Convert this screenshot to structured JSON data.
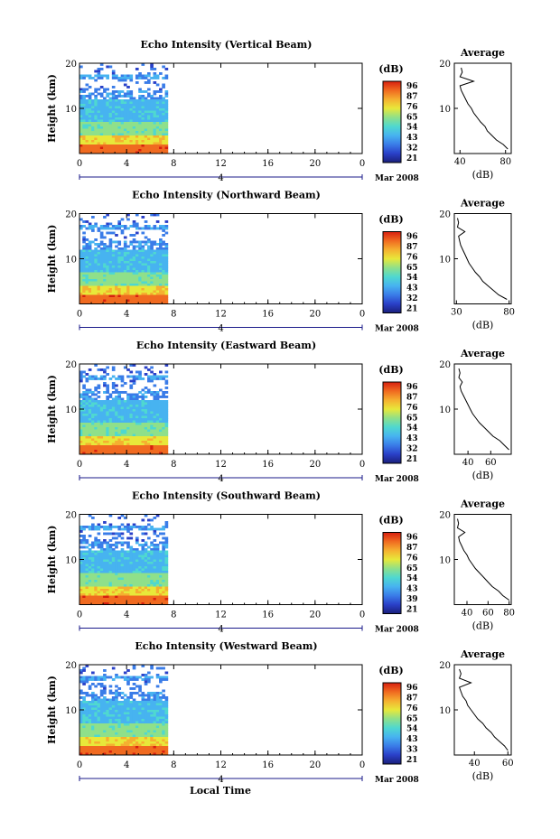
{
  "x_axis_title": "Local Time",
  "date_label": "Mar 2008",
  "day_label": "4",
  "x_ticks": [
    "0",
    "4",
    "8",
    "12",
    "16",
    "20",
    "0"
  ],
  "colorbar": {
    "unit_label": "(dB)"
  },
  "avg_title": "Average",
  "avg_xlabel": "(dB)",
  "y_axis_title": "Height (km)",
  "colors": {
    "scale": [
      "#1a1f7a",
      "#2a40c8",
      "#3a7ce8",
      "#47b3f0",
      "#4fd8d0",
      "#8fe08a",
      "#e8e83a",
      "#f5b030",
      "#f06a20",
      "#d82010"
    ]
  },
  "chart_data": [
    {
      "type": "heatmap",
      "title": "Echo Intensity (Vertical Beam)",
      "ylim": [
        0,
        20
      ],
      "y_ticks": [
        "20",
        "10"
      ],
      "xlim": [
        0,
        24
      ],
      "data_extent_hours": [
        0,
        7.5
      ],
      "colorbar_ticks": [
        "96",
        "87",
        "76",
        "65",
        "54",
        "43",
        "32",
        "21"
      ],
      "average": {
        "x_ticks": [
          "40",
          "80"
        ],
        "xlim": [
          35,
          85
        ],
        "profile_height": [
          1,
          2,
          3,
          4,
          5,
          6,
          7,
          8,
          9,
          10,
          11,
          12,
          13,
          14,
          15,
          16,
          17,
          18,
          19
        ],
        "profile_db": [
          82,
          78,
          72,
          68,
          64,
          62,
          58,
          55,
          52,
          50,
          47,
          45,
          43,
          41,
          40,
          52,
          40,
          42,
          41
        ]
      }
    },
    {
      "type": "heatmap",
      "title": "Echo Intensity (Northward Beam)",
      "ylim": [
        0,
        20
      ],
      "y_ticks": [
        "20",
        "10"
      ],
      "xlim": [
        0,
        24
      ],
      "data_extent_hours": [
        0,
        7.5
      ],
      "colorbar_ticks": [
        "96",
        "87",
        "76",
        "65",
        "54",
        "43",
        "32",
        "21"
      ],
      "average": {
        "x_ticks": [
          "30",
          "80"
        ],
        "xlim": [
          28,
          82
        ],
        "profile_height": [
          1,
          2,
          3,
          4,
          5,
          6,
          7,
          8,
          9,
          10,
          11,
          12,
          13,
          14,
          15,
          16,
          17,
          18,
          19
        ],
        "profile_db": [
          78,
          70,
          65,
          60,
          55,
          52,
          48,
          45,
          42,
          40,
          38,
          36,
          34,
          33,
          32,
          38,
          31,
          32,
          31
        ]
      }
    },
    {
      "type": "heatmap",
      "title": "Echo Intensity (Eastward Beam)",
      "ylim": [
        0,
        20
      ],
      "y_ticks": [
        "20",
        "10"
      ],
      "xlim": [
        0,
        24
      ],
      "data_extent_hours": [
        0,
        7.5
      ],
      "colorbar_ticks": [
        "96",
        "87",
        "76",
        "65",
        "54",
        "43",
        "32",
        "21"
      ],
      "average": {
        "x_ticks": [
          "40",
          "60"
        ],
        "xlim": [
          28,
          78
        ],
        "profile_height": [
          1,
          2,
          3,
          4,
          5,
          6,
          7,
          8,
          9,
          10,
          11,
          12,
          13,
          14,
          15,
          16,
          17,
          18,
          19
        ],
        "profile_db": [
          76,
          72,
          68,
          62,
          58,
          54,
          50,
          47,
          44,
          42,
          40,
          38,
          36,
          34,
          33,
          35,
          32,
          33,
          32
        ]
      }
    },
    {
      "type": "heatmap",
      "title": "Echo Intensity (Southward Beam)",
      "ylim": [
        0,
        20
      ],
      "y_ticks": [
        "20",
        "10"
      ],
      "xlim": [
        0,
        24
      ],
      "data_extent_hours": [
        0,
        7.5
      ],
      "colorbar_ticks": [
        "96",
        "87",
        "76",
        "65",
        "54",
        "43",
        "39",
        "21"
      ],
      "average": {
        "x_ticks": [
          "40",
          "60",
          "80"
        ],
        "xlim": [
          28,
          82
        ],
        "profile_height": [
          1,
          2,
          3,
          4,
          5,
          6,
          7,
          8,
          9,
          10,
          11,
          12,
          13,
          14,
          15,
          16,
          17,
          18,
          19
        ],
        "profile_db": [
          80,
          74,
          70,
          64,
          60,
          56,
          52,
          48,
          45,
          42,
          40,
          37,
          35,
          33,
          32,
          38,
          31,
          32,
          31
        ]
      }
    },
    {
      "type": "heatmap",
      "title": "Echo Intensity (Westward Beam)",
      "ylim": [
        0,
        20
      ],
      "y_ticks": [
        "20",
        "10"
      ],
      "xlim": [
        0,
        24
      ],
      "data_extent_hours": [
        0,
        7.5
      ],
      "colorbar_ticks": [
        "96",
        "87",
        "76",
        "65",
        "54",
        "43",
        "33",
        "21"
      ],
      "average": {
        "x_ticks": [
          "40",
          "60"
        ],
        "xlim": [
          28,
          62
        ],
        "profile_height": [
          1,
          2,
          3,
          4,
          5,
          6,
          7,
          8,
          9,
          10,
          11,
          12,
          13,
          14,
          15,
          16,
          17,
          18,
          19
        ],
        "profile_db": [
          60,
          58,
          55,
          52,
          50,
          47,
          45,
          42,
          40,
          38,
          36,
          35,
          33,
          32,
          31,
          38,
          31,
          32,
          31
        ]
      }
    }
  ]
}
